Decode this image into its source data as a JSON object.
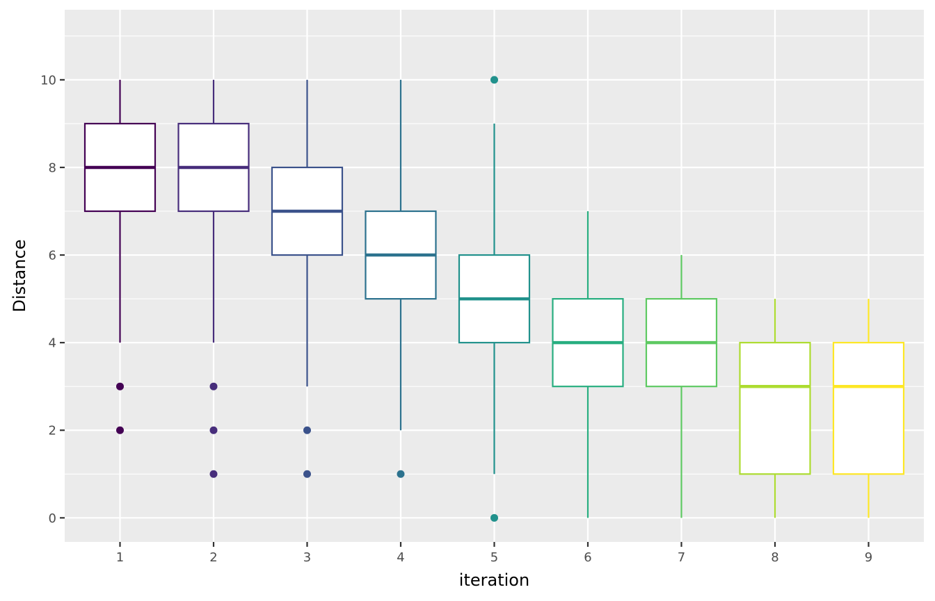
{
  "chart_data": {
    "type": "boxplot",
    "xlabel": "iteration",
    "ylabel": "Distance",
    "ylim": [
      -0.55,
      11.6
    ],
    "yticks": [
      0,
      2,
      4,
      6,
      8,
      10
    ],
    "grid": true,
    "legend": "none",
    "categories": [
      "1",
      "2",
      "3",
      "4",
      "5",
      "6",
      "7",
      "8",
      "9"
    ],
    "boxes": [
      {
        "category": "1",
        "color": "#440154",
        "q1": 7,
        "median": 8,
        "q3": 9,
        "whisker_low": 4,
        "whisker_high": 10,
        "outliers": [
          3,
          2
        ]
      },
      {
        "category": "2",
        "color": "#472d7b",
        "q1": 7,
        "median": 8,
        "q3": 9,
        "whisker_low": 4,
        "whisker_high": 10,
        "outliers": [
          3,
          2,
          1
        ]
      },
      {
        "category": "3",
        "color": "#3b528b",
        "q1": 6,
        "median": 7,
        "q3": 8,
        "whisker_low": 3,
        "whisker_high": 10,
        "outliers": [
          2,
          1
        ]
      },
      {
        "category": "4",
        "color": "#2c728e",
        "q1": 5,
        "median": 6,
        "q3": 7,
        "whisker_low": 2,
        "whisker_high": 10,
        "outliers": [
          1
        ]
      },
      {
        "category": "5",
        "color": "#21918c",
        "q1": 4,
        "median": 5,
        "q3": 6,
        "whisker_low": 1,
        "whisker_high": 9,
        "outliers": [
          10,
          0
        ]
      },
      {
        "category": "6",
        "color": "#28ae80",
        "q1": 3,
        "median": 4,
        "q3": 5,
        "whisker_low": 0,
        "whisker_high": 7,
        "outliers": []
      },
      {
        "category": "7",
        "color": "#5ec962",
        "q1": 3,
        "median": 4,
        "q3": 5,
        "whisker_low": 0,
        "whisker_high": 6,
        "outliers": []
      },
      {
        "category": "8",
        "color": "#addc30",
        "q1": 1,
        "median": 3,
        "q3": 4,
        "whisker_low": 0,
        "whisker_high": 5,
        "outliers": []
      },
      {
        "category": "9",
        "color": "#fde725",
        "q1": 1,
        "median": 3,
        "q3": 4,
        "whisker_low": 0,
        "whisker_high": 5,
        "outliers": []
      }
    ]
  }
}
